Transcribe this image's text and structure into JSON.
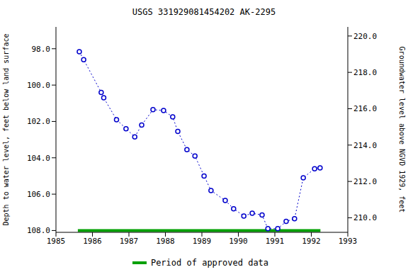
{
  "chart_data": {
    "type": "line",
    "title": "USGS 331929081454202 AK-2295",
    "y_label": "Depth to water level, feet below land surface",
    "y2_label": "Groundwater level above NGVD 1929, feet",
    "xlim": [
      1985,
      1993
    ],
    "xticks": [
      1985,
      1986,
      1987,
      1988,
      1989,
      1990,
      1991,
      1992,
      1993
    ],
    "ylim": [
      96.8,
      108.1
    ],
    "yticks": [
      {
        "value": 98,
        "label": "98.0"
      },
      {
        "value": 100,
        "label": "100.0"
      },
      {
        "value": 102,
        "label": "102.0"
      },
      {
        "value": 104,
        "label": "104.0"
      },
      {
        "value": 106,
        "label": "106.0"
      },
      {
        "value": 108,
        "label": "108.0"
      }
    ],
    "y2lim": [
      209.2,
      220.5
    ],
    "y2ticks": [
      {
        "value": 210,
        "label": "210.0"
      },
      {
        "value": 212,
        "label": "212.0"
      },
      {
        "value": 214,
        "label": "214.0"
      },
      {
        "value": 216,
        "label": "216.0"
      },
      {
        "value": 218,
        "label": "218.0"
      },
      {
        "value": 220,
        "label": "220.0"
      }
    ],
    "grid": false,
    "legend": "bottom",
    "series": [
      {
        "x": [
          1985.64,
          1985.76,
          1986.24,
          1986.31,
          1986.66,
          1986.92,
          1987.16,
          1987.35,
          1987.66,
          1987.95,
          1988.2,
          1988.34,
          1988.59,
          1988.81,
          1989.06,
          1989.25,
          1989.64,
          1989.87,
          1990.15,
          1990.38,
          1990.65,
          1990.81,
          1991.08,
          1991.31,
          1991.54,
          1991.78,
          1992.09,
          1992.24
        ],
        "values": [
          98.16,
          98.6,
          100.4,
          100.7,
          101.9,
          102.4,
          102.85,
          102.2,
          101.35,
          101.4,
          101.75,
          102.55,
          103.55,
          103.9,
          105.0,
          105.8,
          106.35,
          106.8,
          107.2,
          107.05,
          107.15,
          107.9,
          107.9,
          107.5,
          107.35,
          105.1,
          104.6,
          104.55
        ],
        "color": "#0000cc",
        "marker": "circle",
        "line_style": "dotted"
      },
      {
        "name": "Period of approved data",
        "x": [
          1985.6,
          1992.25
        ],
        "values": [
          108.0,
          108.0
        ],
        "color": "#00a000",
        "marker": "none",
        "line_style": "solid"
      }
    ]
  }
}
